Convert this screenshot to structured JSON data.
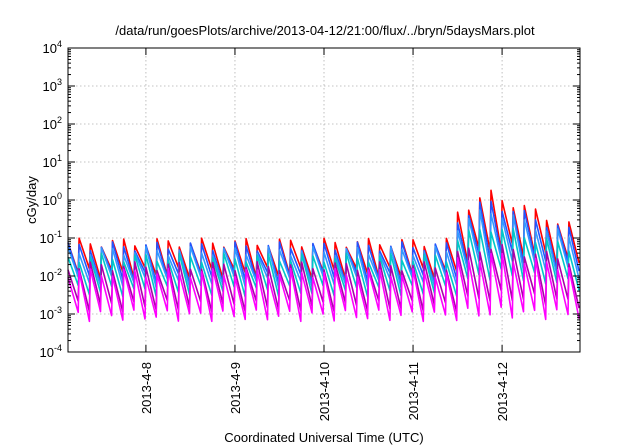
{
  "chart_data": {
    "type": "line",
    "title": "/data/run/goesPlots/archive/2013-04-12/21:00/flux/../bryn/5daysMars.plot",
    "xlabel": "Coordinated Universal Time (UTC)",
    "ylabel": "cGy/day",
    "yscale": "log",
    "ylim": [
      0.0001,
      10000
    ],
    "y_ticks": [
      {
        "base": "10",
        "exp": "-4"
      },
      {
        "base": "10",
        "exp": "-3"
      },
      {
        "base": "10",
        "exp": "-2"
      },
      {
        "base": "10",
        "exp": "-1"
      },
      {
        "base": "10",
        "exp": "0"
      },
      {
        "base": "10",
        "exp": "1"
      },
      {
        "base": "10",
        "exp": "2"
      },
      {
        "base": "10",
        "exp": "3"
      },
      {
        "base": "10",
        "exp": "4"
      }
    ],
    "xlim": [
      "2013-04-07 03:00",
      "2013-04-12 21:00"
    ],
    "x_ticks": [
      "2013-4-8",
      "2013-4-9",
      "2013-4-10",
      "2013-4-11",
      "2013-4-12"
    ],
    "grid": true,
    "legend": "none",
    "series": [
      {
        "color": "#ff0000",
        "peak": 0.075,
        "trough": 0.012,
        "event_peak": 1.5,
        "event_trough": 0.06
      },
      {
        "color": "#2255ff",
        "peak": 0.06,
        "trough": 0.009,
        "event_peak": 0.9,
        "event_trough": 0.04
      },
      {
        "color": "#3399ff",
        "peak": 0.045,
        "trough": 0.007,
        "event_peak": 0.55,
        "event_trough": 0.025
      },
      {
        "color": "#00c8c8",
        "peak": 0.03,
        "trough": 0.004,
        "event_peak": 0.2,
        "event_trough": 0.012
      },
      {
        "color": "#aa00aa",
        "peak": 0.018,
        "trough": 0.0016,
        "event_peak": 0.06,
        "event_trough": 0.003
      },
      {
        "color": "#ff00ff",
        "peak": 0.012,
        "trough": 0.0009,
        "event_peak": 0.035,
        "event_trough": 0.0011
      }
    ],
    "cycle_hours": 3,
    "event_start": "2013-04-11 12:00",
    "event_peak_time": "2013-04-11 20:00"
  }
}
